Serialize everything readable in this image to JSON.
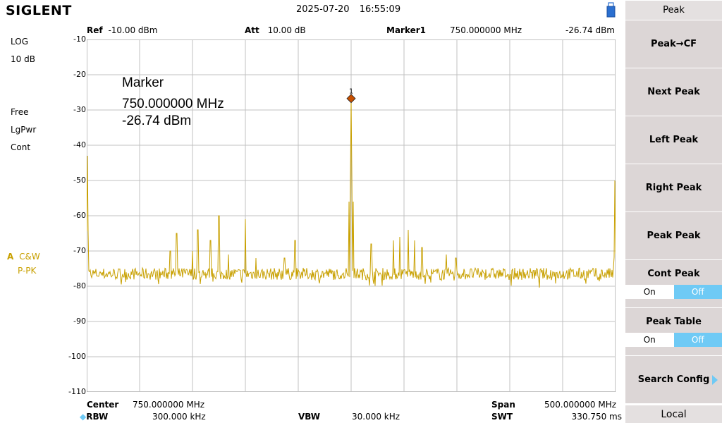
{
  "header": {
    "brand": "SIGLENT",
    "date": "2025-07-20",
    "time": "16:55:09"
  },
  "topbar": {
    "ref_label": "Ref",
    "ref_value": "-10.00 dBm",
    "att_label": "Att",
    "att_value": "10.00 dB",
    "marker_label": "Marker1",
    "marker_freq": "750.000000 MHz",
    "marker_level": "-26.74 dBm"
  },
  "left_panel": {
    "scale_type": "LOG",
    "scale_div": "10 dB",
    "trig": "Free",
    "detector": "LgPwr",
    "sweep_mode": "Cont",
    "trace_letter": "A",
    "trace_mode": "C&W",
    "trace_det": "P-PK"
  },
  "y_ticks": [
    "-10",
    "-20",
    "-30",
    "-40",
    "-50",
    "-60",
    "-70",
    "-80",
    "-90",
    "-100",
    "-110"
  ],
  "marker_annotation": {
    "title": "Marker",
    "freq": "750.000000 MHz",
    "level": "-26.74 dBm",
    "id": "1"
  },
  "bottombar": {
    "center_label": "Center",
    "center_value": "750.000000 MHz",
    "rbw_label": "RBW",
    "rbw_value": "300.000 kHz",
    "vbw_label": "VBW",
    "vbw_value": "30.000 kHz",
    "span_label": "Span",
    "span_value": "500.000000 MHz",
    "swt_label": "SWT",
    "swt_value": "330.750 ms"
  },
  "softkeys": {
    "title": "Peak",
    "items": [
      {
        "label": "Peak→CF"
      },
      {
        "label": "Next Peak"
      },
      {
        "label": "Left Peak"
      },
      {
        "label": "Right Peak"
      },
      {
        "label": "Peak Peak"
      }
    ],
    "cont_peak": {
      "label": "Cont Peak",
      "on": "On",
      "off": "Off"
    },
    "peak_table": {
      "label": "Peak Table",
      "on": "On",
      "off": "Off"
    },
    "search_config": "Search Config",
    "local": "Local"
  },
  "chart_data": {
    "type": "line",
    "xlabel": "",
    "ylabel": "",
    "x_range_mhz": [
      500,
      1000
    ],
    "ylim": [
      -110,
      -10
    ],
    "grid": true,
    "series": [
      {
        "color": "#c8a000",
        "noise_floor_dbm": -76.5,
        "spurs": [
          {
            "x": 500.5,
            "y": -43
          },
          {
            "x": 579,
            "y": -70
          },
          {
            "x": 585,
            "y": -65
          },
          {
            "x": 600,
            "y": -70
          },
          {
            "x": 605,
            "y": -64
          },
          {
            "x": 617,
            "y": -67
          },
          {
            "x": 625,
            "y": -60
          },
          {
            "x": 634,
            "y": -71
          },
          {
            "x": 650,
            "y": -61
          },
          {
            "x": 660,
            "y": -72
          },
          {
            "x": 687,
            "y": -72
          },
          {
            "x": 697,
            "y": -67
          },
          {
            "x": 748,
            "y": -56
          },
          {
            "x": 750,
            "y": -26.74
          },
          {
            "x": 752,
            "y": -56
          },
          {
            "x": 769,
            "y": -68
          },
          {
            "x": 790,
            "y": -67
          },
          {
            "x": 796,
            "y": -66
          },
          {
            "x": 804,
            "y": -64
          },
          {
            "x": 810,
            "y": -67
          },
          {
            "x": 817,
            "y": -69
          },
          {
            "x": 840,
            "y": -71
          },
          {
            "x": 849,
            "y": -72
          },
          {
            "x": 999.5,
            "y": -50
          }
        ]
      }
    ]
  },
  "colors": {
    "trace": "#c8a000",
    "grid": "#c0c0c0",
    "toggle_active": "#6fcaf5",
    "softkey_bg": "#dcd6d6",
    "marker": "#c85000"
  }
}
